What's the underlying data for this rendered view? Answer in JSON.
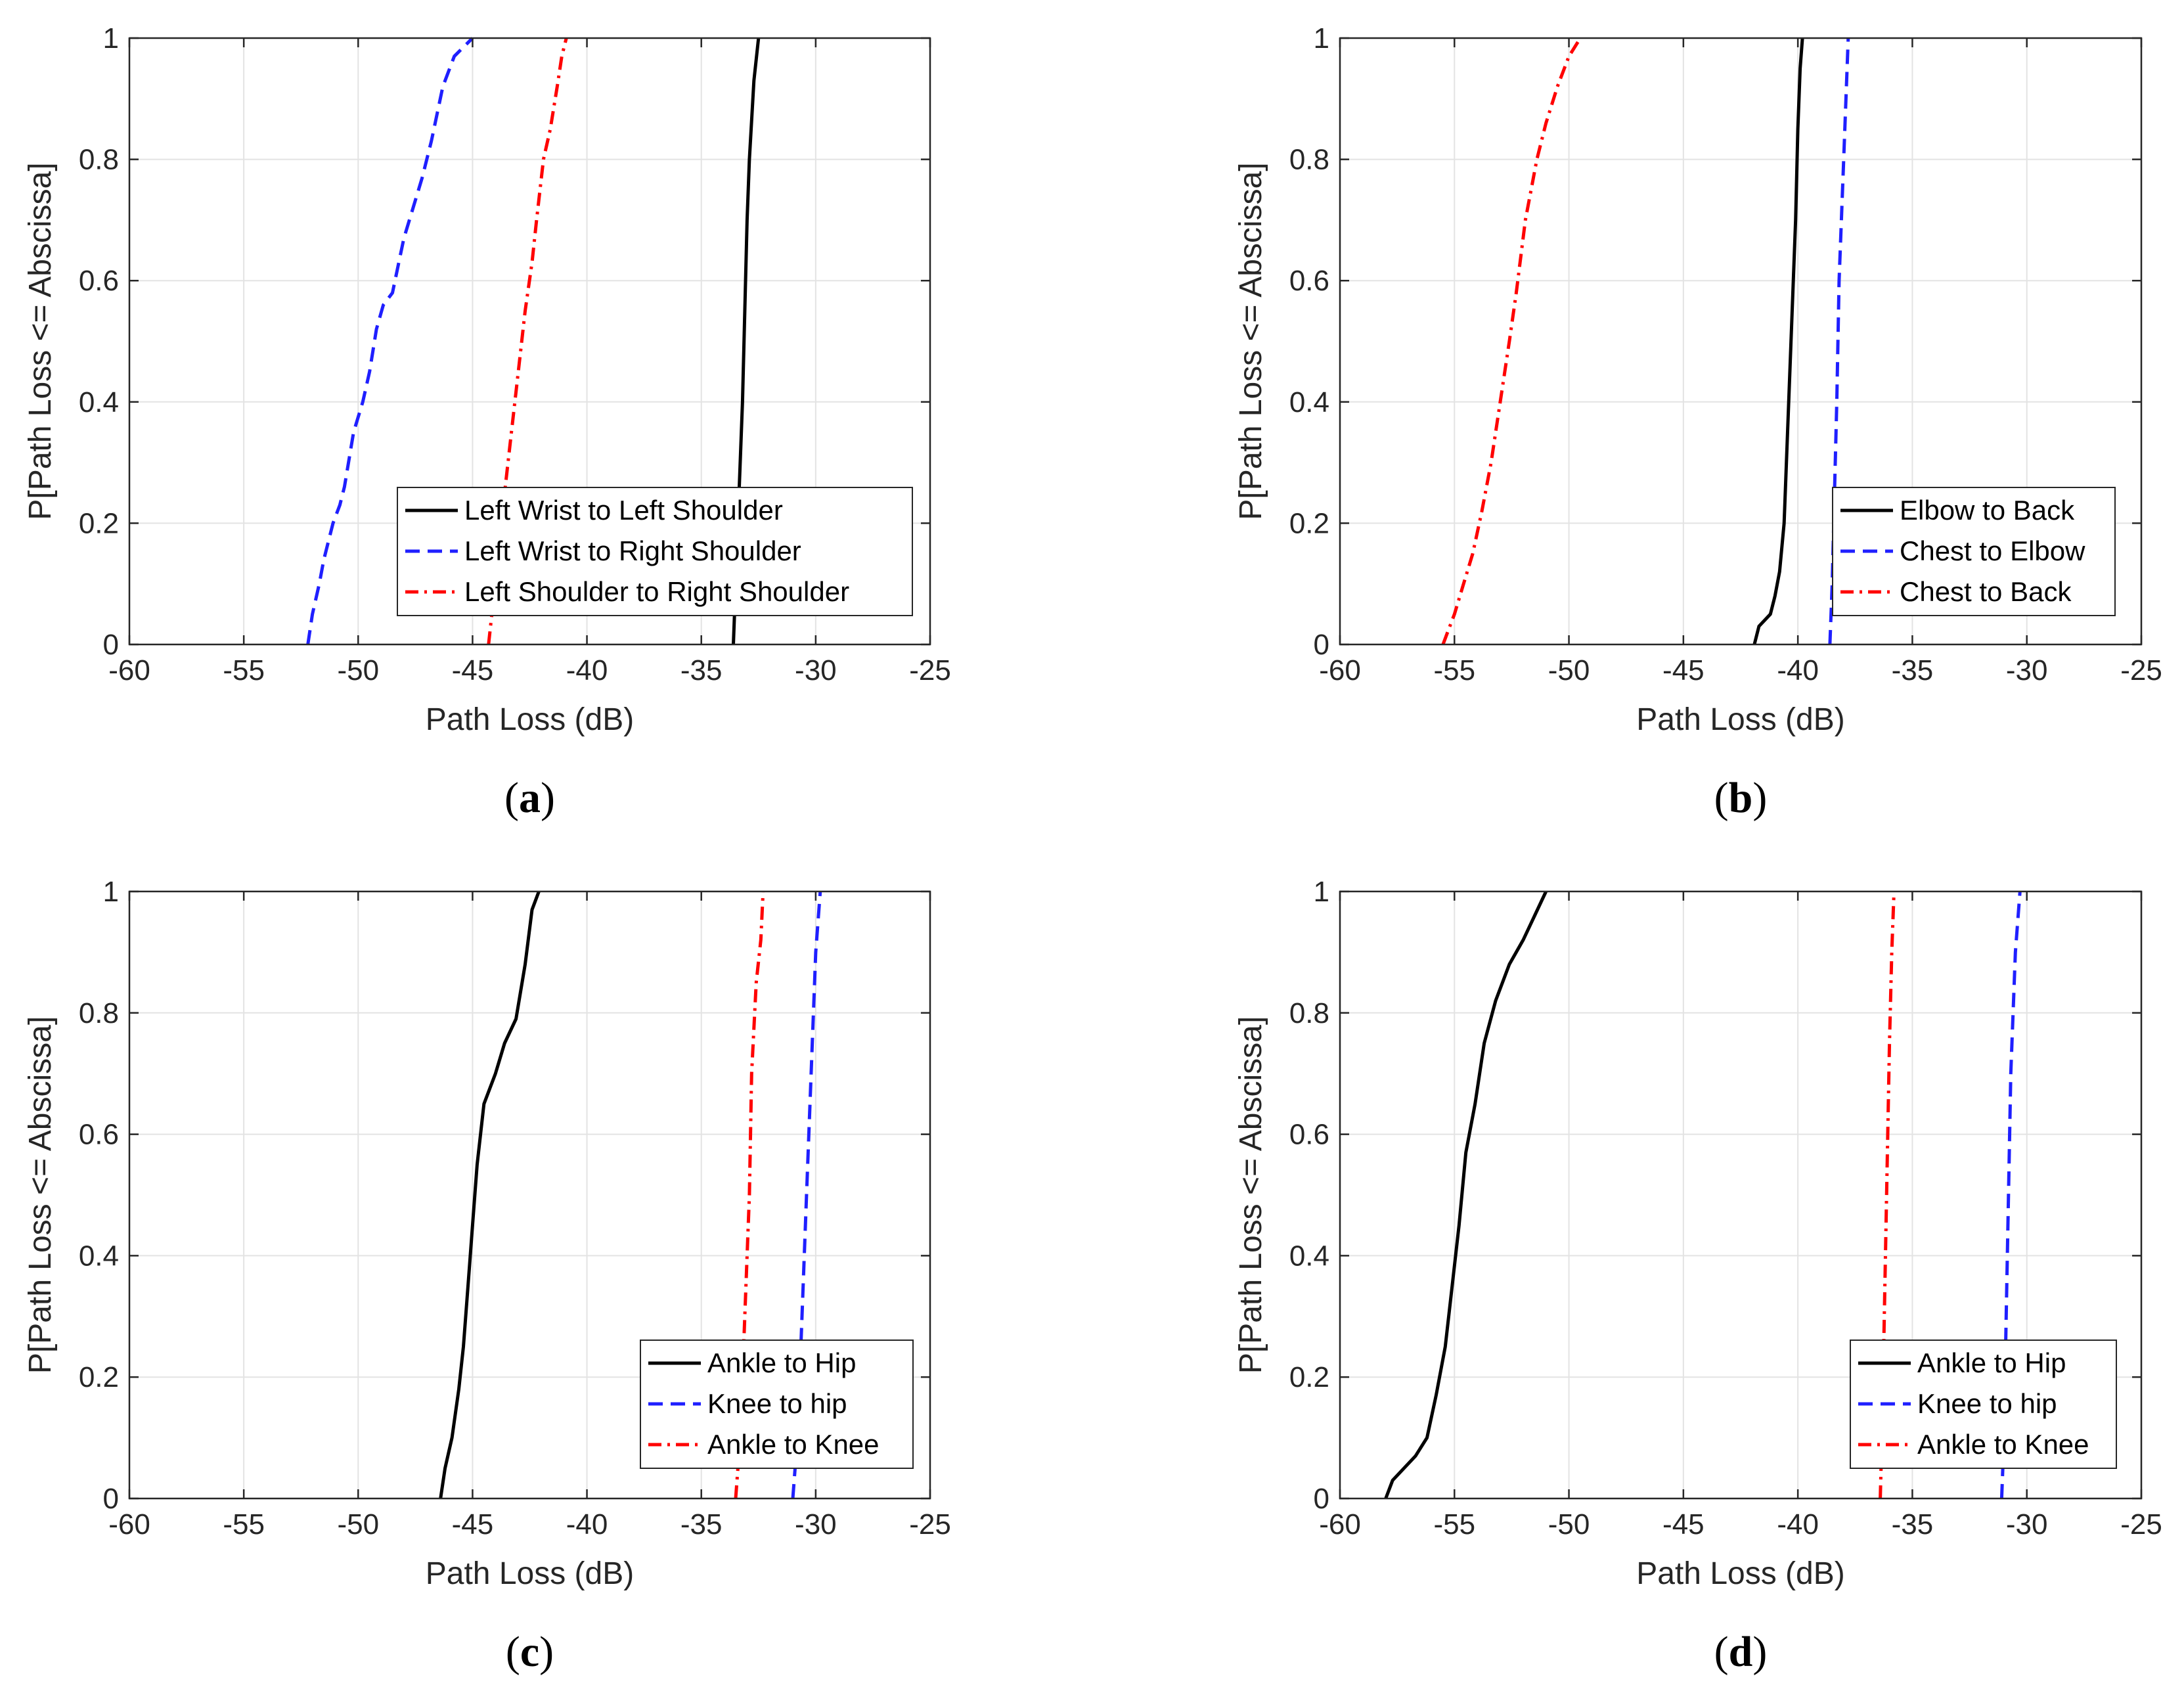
{
  "chart_data": [
    {
      "panel": "a",
      "type": "line",
      "panel_label": "a",
      "xlabel": "Path Loss (dB)",
      "ylabel": "P[Path Loss <= Abscissa]",
      "xlim": [
        -60,
        -25
      ],
      "ylim": [
        0,
        1
      ],
      "xticks": [
        "-60",
        "-55",
        "-50",
        "-45",
        "-40",
        "-35",
        "-30",
        "-25"
      ],
      "yticks": [
        "0",
        "0.2",
        "0.4",
        "0.6",
        "0.8",
        "1"
      ],
      "grid": true,
      "legend_position": "bottom-right",
      "series": [
        {
          "name": "Left Wrist to Left Shoulder",
          "color": "#000000",
          "style": "solid",
          "x": [
            -33.6,
            -33.5,
            -33.4,
            -33.3,
            -33.2,
            -33.1,
            -33.0,
            -32.9,
            -32.7,
            -32.5
          ],
          "y": [
            0,
            0.1,
            0.2,
            0.3,
            0.4,
            0.55,
            0.7,
            0.8,
            0.93,
            1.0
          ]
        },
        {
          "name": "Left Wrist to Right Shoulder",
          "color": "#1f1fff",
          "style": "dashed",
          "x": [
            -52.2,
            -52.0,
            -51.7,
            -51.5,
            -51.1,
            -50.8,
            -50.6,
            -50.2,
            -49.8,
            -49.5,
            -49.2,
            -48.9,
            -48.5,
            -48.0,
            -47.6,
            -47.2,
            -46.8,
            -46.3,
            -45.8,
            -45.0
          ],
          "y": [
            0,
            0.05,
            0.1,
            0.14,
            0.2,
            0.23,
            0.26,
            0.35,
            0.4,
            0.45,
            0.52,
            0.56,
            0.58,
            0.67,
            0.72,
            0.77,
            0.83,
            0.92,
            0.97,
            1.0
          ]
        },
        {
          "name": "Left Shoulder to Right Shoulder",
          "color": "#ff0000",
          "style": "dashdot",
          "x": [
            -44.3,
            -44.1,
            -43.9,
            -43.6,
            -43.3,
            -43.0,
            -42.7,
            -42.4,
            -42.2,
            -41.9,
            -41.6,
            -41.3,
            -41.1,
            -40.9
          ],
          "y": [
            0,
            0.07,
            0.15,
            0.25,
            0.35,
            0.45,
            0.55,
            0.63,
            0.7,
            0.8,
            0.85,
            0.92,
            0.97,
            1.0
          ]
        }
      ]
    },
    {
      "panel": "b",
      "type": "line",
      "panel_label": "b",
      "xlabel": "Path Loss (dB)",
      "ylabel": "P[Path Loss <= Abscissa]",
      "xlim": [
        -60,
        -25
      ],
      "ylim": [
        0,
        1
      ],
      "xticks": [
        "-60",
        "-55",
        "-50",
        "-45",
        "-40",
        "-35",
        "-30",
        "-25"
      ],
      "yticks": [
        "0",
        "0.2",
        "0.4",
        "0.6",
        "0.8",
        "1"
      ],
      "grid": true,
      "legend_position": "bottom-right",
      "series": [
        {
          "name": "Elbow to Back",
          "color": "#000000",
          "style": "solid",
          "x": [
            -41.9,
            -41.7,
            -41.2,
            -41.0,
            -40.8,
            -40.6,
            -40.5,
            -40.4,
            -40.3,
            -40.2,
            -40.1,
            -40.0,
            -39.9,
            -39.8
          ],
          "y": [
            0,
            0.03,
            0.05,
            0.08,
            0.12,
            0.2,
            0.3,
            0.4,
            0.5,
            0.6,
            0.7,
            0.85,
            0.95,
            1.0
          ]
        },
        {
          "name": "Chest to Elbow",
          "color": "#1f1fff",
          "style": "dashed",
          "x": [
            -38.6,
            -38.5,
            -38.4,
            -38.3,
            -38.2,
            -38.0,
            -37.8
          ],
          "y": [
            0,
            0.1,
            0.25,
            0.4,
            0.6,
            0.8,
            1.0
          ]
        },
        {
          "name": "Chest to Back",
          "color": "#ff0000",
          "style": "dashdot",
          "x": [
            -55.5,
            -55.3,
            -55.0,
            -54.6,
            -54.2,
            -53.8,
            -53.4,
            -53.0,
            -52.6,
            -52.3,
            -51.9,
            -51.4,
            -51.0,
            -50.5,
            -50.0,
            -49.5
          ],
          "y": [
            0,
            0.02,
            0.05,
            0.1,
            0.15,
            0.22,
            0.3,
            0.4,
            0.5,
            0.58,
            0.7,
            0.8,
            0.86,
            0.92,
            0.97,
            1.0
          ]
        }
      ]
    },
    {
      "panel": "c",
      "type": "line",
      "panel_label": "c",
      "xlabel": "Path Loss (dB)",
      "ylabel": "P[Path Loss <= Abscissa]",
      "xlim": [
        -60,
        -25
      ],
      "ylim": [
        0,
        1
      ],
      "xticks": [
        "-60",
        "-55",
        "-50",
        "-45",
        "-40",
        "-35",
        "-30",
        "-25"
      ],
      "yticks": [
        "0",
        "0.2",
        "0.4",
        "0.6",
        "0.8",
        "1"
      ],
      "grid": true,
      "legend_position": "bottom-right",
      "series": [
        {
          "name": "Ankle to Hip",
          "color": "#000000",
          "style": "solid",
          "x": [
            -46.4,
            -46.2,
            -45.9,
            -45.6,
            -45.4,
            -45.2,
            -45.0,
            -44.8,
            -44.5,
            -44.0,
            -43.6,
            -43.1,
            -42.7,
            -42.4,
            -42.1
          ],
          "y": [
            0,
            0.05,
            0.1,
            0.18,
            0.25,
            0.35,
            0.45,
            0.55,
            0.65,
            0.7,
            0.75,
            0.79,
            0.88,
            0.97,
            1.0
          ]
        },
        {
          "name": "Knee to hip",
          "color": "#1f1fff",
          "style": "dashed",
          "x": [
            -31.0,
            -30.8,
            -30.6,
            -30.4,
            -30.2,
            -30.0,
            -29.8
          ],
          "y": [
            0,
            0.1,
            0.3,
            0.5,
            0.7,
            0.9,
            1.0
          ]
        },
        {
          "name": "Ankle to Knee",
          "color": "#ff0000",
          "style": "dashdot",
          "x": [
            -33.5,
            -33.3,
            -33.1,
            -32.9,
            -32.8,
            -32.6,
            -32.4,
            -32.3
          ],
          "y": [
            0,
            0.1,
            0.3,
            0.5,
            0.7,
            0.85,
            0.92,
            1.0
          ]
        }
      ]
    },
    {
      "panel": "d",
      "type": "line",
      "panel_label": "d",
      "xlabel": "Path Loss (dB)",
      "ylabel": "P[Path Loss <= Abscissa]",
      "xlim": [
        -60,
        -25
      ],
      "ylim": [
        0,
        1
      ],
      "xticks": [
        "-60",
        "-55",
        "-50",
        "-45",
        "-40",
        "-35",
        "-30",
        "-25"
      ],
      "yticks": [
        "0",
        "0.2",
        "0.4",
        "0.6",
        "0.8",
        "1"
      ],
      "grid": true,
      "legend_position": "bottom-right",
      "series": [
        {
          "name": "Ankle to Hip",
          "color": "#000000",
          "style": "solid",
          "x": [
            -58.0,
            -57.7,
            -57.2,
            -56.7,
            -56.2,
            -55.8,
            -55.4,
            -55.1,
            -54.8,
            -54.5,
            -54.1,
            -53.7,
            -53.2,
            -52.6,
            -52.0,
            -51.5,
            -51.0
          ],
          "y": [
            0,
            0.03,
            0.05,
            0.07,
            0.1,
            0.17,
            0.25,
            0.35,
            0.45,
            0.57,
            0.65,
            0.75,
            0.82,
            0.88,
            0.92,
            0.96,
            1.0
          ]
        },
        {
          "name": "Knee to hip",
          "color": "#1f1fff",
          "style": "dashed",
          "x": [
            -31.1,
            -31.0,
            -30.9,
            -30.8,
            -30.7,
            -30.5,
            -30.3
          ],
          "y": [
            0,
            0.1,
            0.3,
            0.5,
            0.7,
            0.9,
            1.0
          ]
        },
        {
          "name": "Ankle to Knee",
          "color": "#ff0000",
          "style": "dashdot",
          "x": [
            -36.4,
            -36.3,
            -36.2,
            -36.1,
            -36.0,
            -35.9,
            -35.8
          ],
          "y": [
            0,
            0.15,
            0.35,
            0.55,
            0.75,
            0.9,
            1.0
          ]
        }
      ]
    }
  ]
}
